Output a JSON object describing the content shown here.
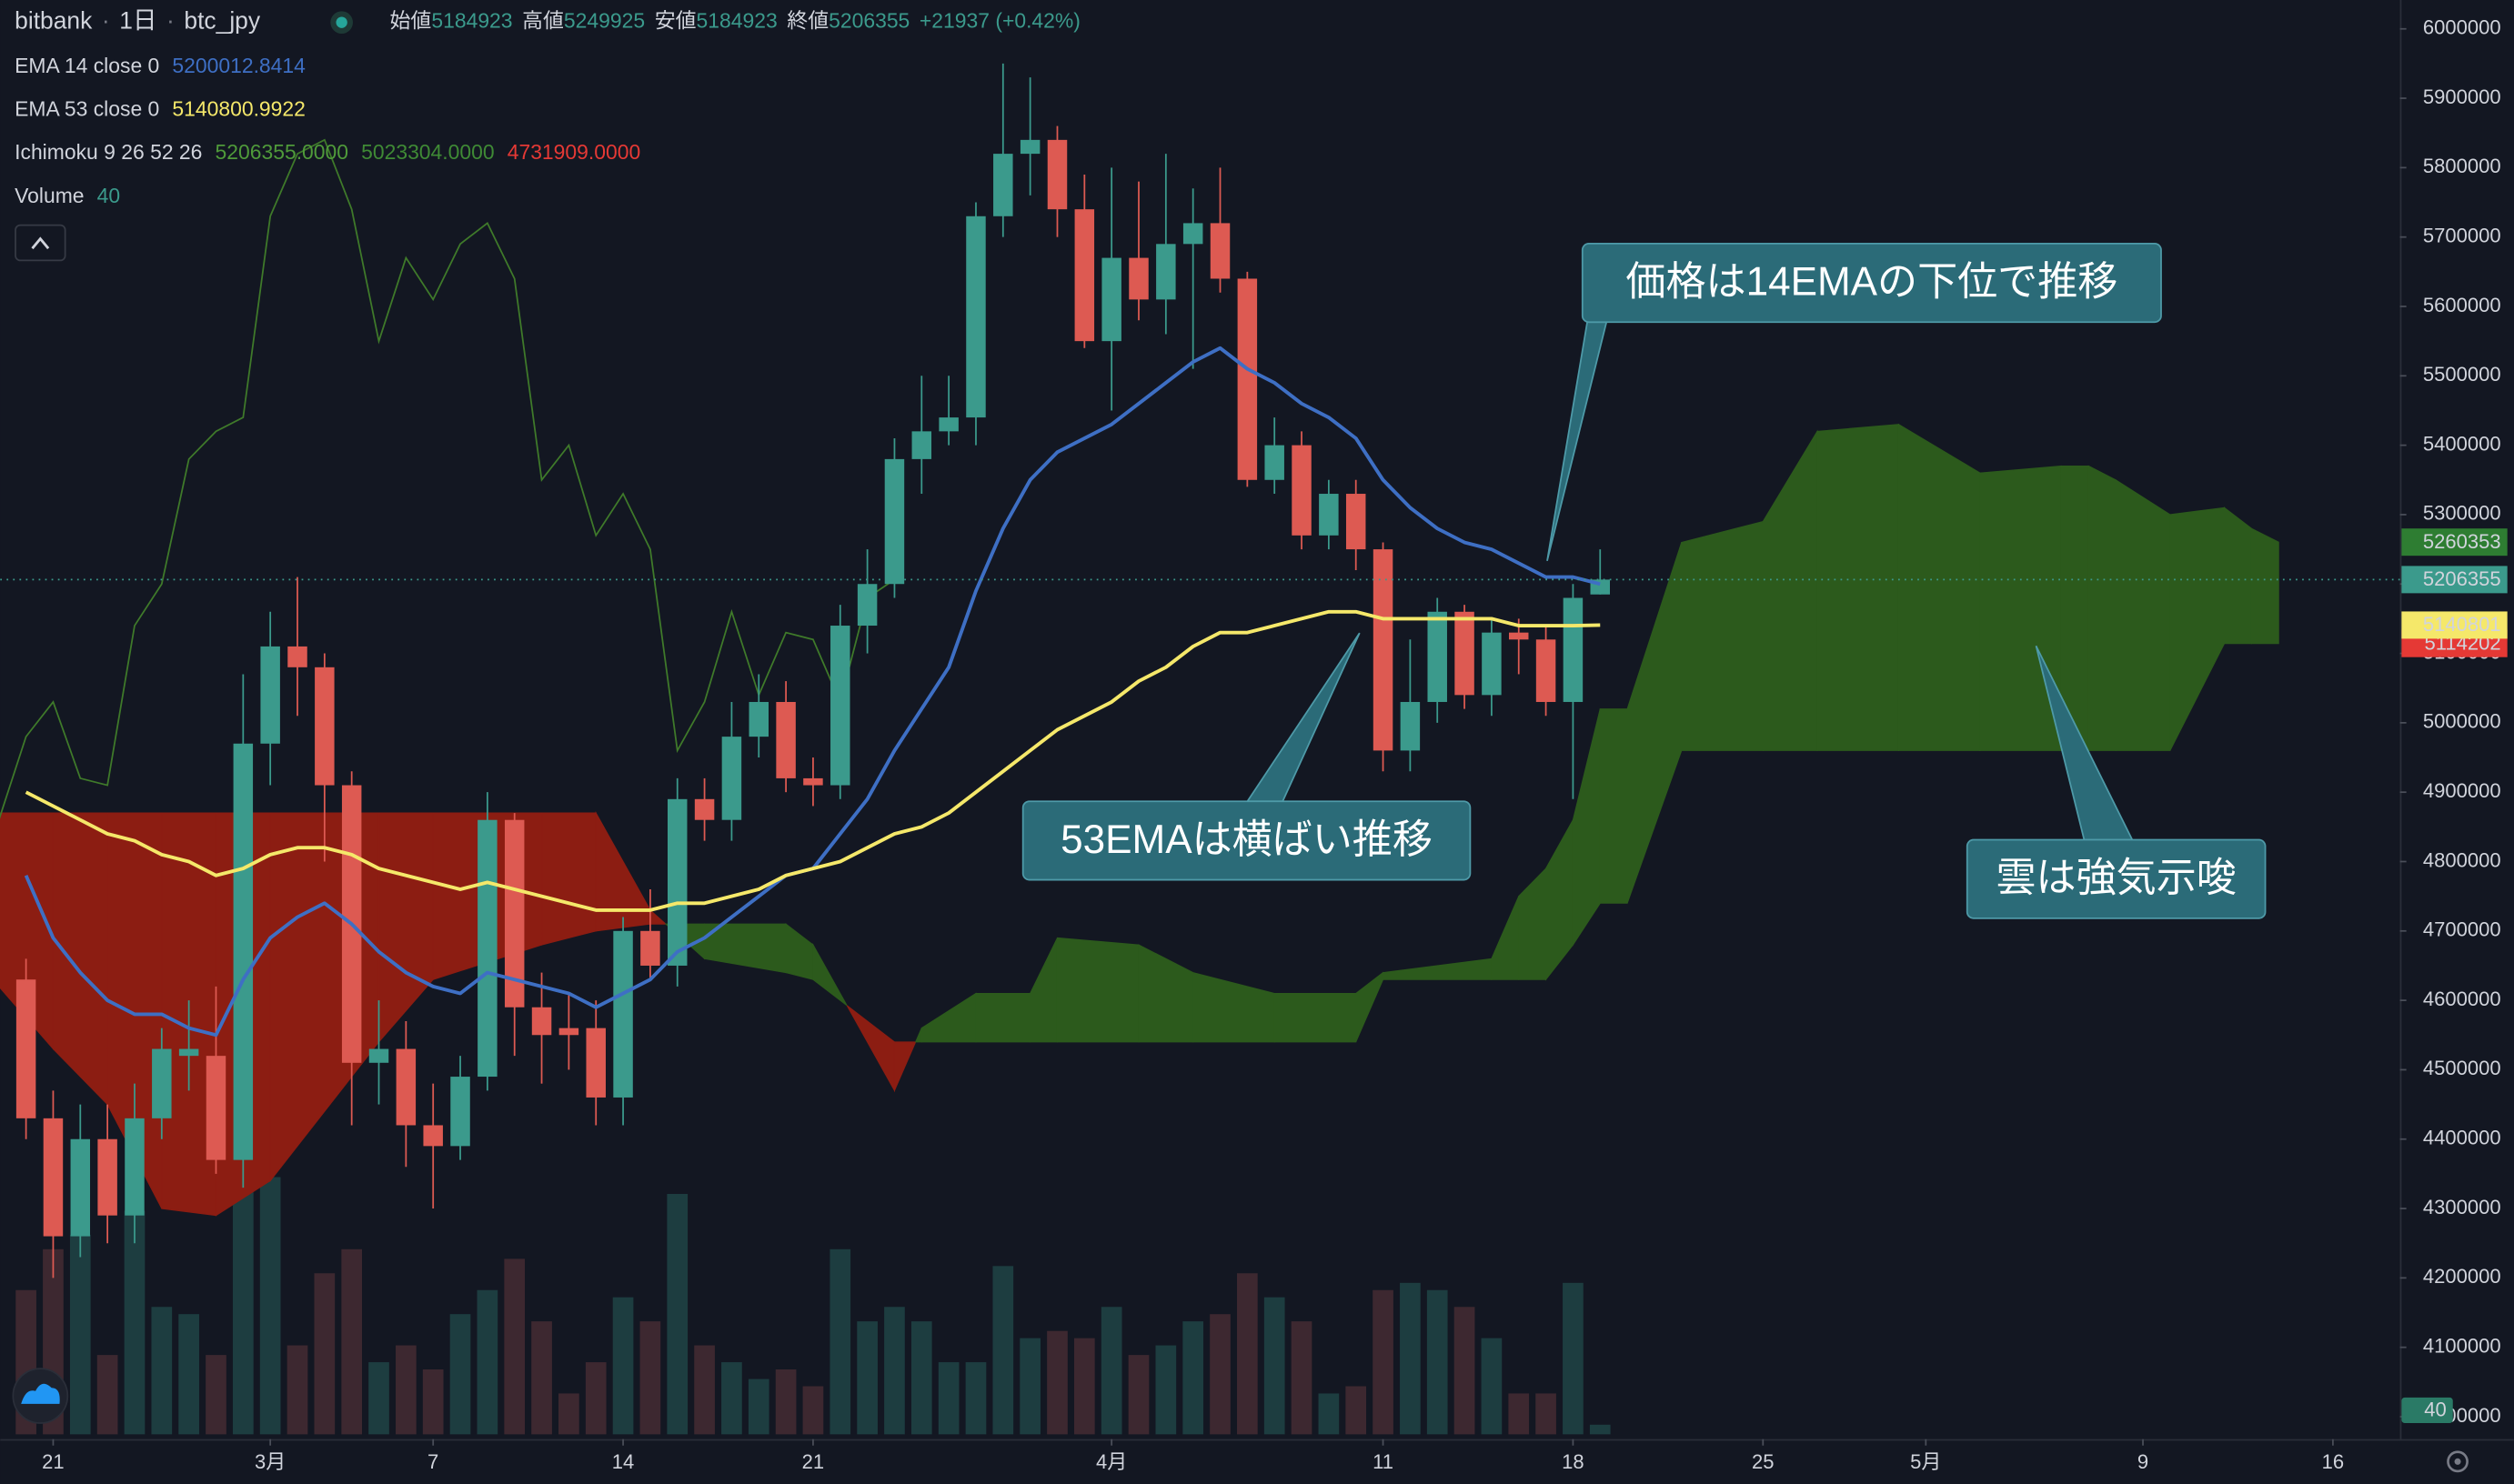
{
  "chart_data": {
    "type": "candlestick",
    "header": {
      "symbol": "bitbank",
      "interval": "1日",
      "pair": "btc_jpy",
      "labels": [
        "始値",
        "高値",
        "安値",
        "終値"
      ],
      "change": "+21937 (+0.42%)"
    },
    "x": [
      -1,
      0,
      1,
      2,
      3,
      4,
      5,
      6,
      7,
      8,
      9,
      10,
      11,
      12,
      13,
      14,
      15,
      16,
      17,
      18,
      19,
      20,
      21,
      22,
      23,
      24,
      25,
      26,
      27,
      28,
      29,
      30,
      31,
      32,
      33,
      34,
      35,
      36,
      37,
      38,
      39,
      40,
      41,
      42,
      43,
      44,
      45,
      46,
      47,
      48,
      49,
      50,
      51,
      52,
      53,
      54,
      55,
      56,
      57
    ],
    "open": [
      4630000,
      4430000,
      4260000,
      4400000,
      4290000,
      4430000,
      4520000,
      4520000,
      4370000,
      4970000,
      5110000,
      5080000,
      4910000,
      4510000,
      4530000,
      4420000,
      4390000,
      4490000,
      4860000,
      4590000,
      4560000,
      4560000,
      4460000,
      4700000,
      4650000,
      4890000,
      4860000,
      4980000,
      5030000,
      4920000,
      4910000,
      5140000,
      5200000,
      5380000,
      5420000,
      5440000,
      5730000,
      5820000,
      5840000,
      5740000,
      5550000,
      5670000,
      5610000,
      5690000,
      5720000,
      5640000,
      5350000,
      5400000,
      5270000,
      5330000,
      5250000,
      4960000,
      5030000,
      5160000,
      5040000,
      5130000,
      5120000,
      5030000,
      5184923
    ],
    "high": [
      4660000,
      4470000,
      4450000,
      4450000,
      4480000,
      4560000,
      4600000,
      4620000,
      5070000,
      5160000,
      5210000,
      5100000,
      4930000,
      4600000,
      4570000,
      4480000,
      4520000,
      4900000,
      4870000,
      4640000,
      4610000,
      4600000,
      4720000,
      4760000,
      4920000,
      4920000,
      5030000,
      5070000,
      5060000,
      4950000,
      5170000,
      5250000,
      5410000,
      5500000,
      5500000,
      5750000,
      5950000,
      5930000,
      5860000,
      5790000,
      5800000,
      5780000,
      5820000,
      5770000,
      5800000,
      5650000,
      5440000,
      5420000,
      5350000,
      5350000,
      5260000,
      5120000,
      5180000,
      5170000,
      5150000,
      5150000,
      5140000,
      5200000,
      5249925
    ],
    "low": [
      4400000,
      4200000,
      4230000,
      4250000,
      4250000,
      4400000,
      4470000,
      4350000,
      4330000,
      4910000,
      5010000,
      4800000,
      4420000,
      4450000,
      4360000,
      4300000,
      4370000,
      4470000,
      4520000,
      4480000,
      4500000,
      4420000,
      4420000,
      4630000,
      4620000,
      4830000,
      4830000,
      4950000,
      4900000,
      4880000,
      4890000,
      5100000,
      5180000,
      5330000,
      5400000,
      5400000,
      5700000,
      5760000,
      5700000,
      5540000,
      5450000,
      5580000,
      5560000,
      5510000,
      5620000,
      5340000,
      5330000,
      5250000,
      5250000,
      5220000,
      4930000,
      4930000,
      5000000,
      5020000,
      5010000,
      5070000,
      5010000,
      4890000,
      5184923
    ],
    "close": [
      4430000,
      4260000,
      4400000,
      4290000,
      4430000,
      4530000,
      4530000,
      4370000,
      4970000,
      5110000,
      5080000,
      4910000,
      4510000,
      4530000,
      4420000,
      4390000,
      4490000,
      4860000,
      4590000,
      4550000,
      4550000,
      4460000,
      4700000,
      4650000,
      4890000,
      4860000,
      4980000,
      5030000,
      4920000,
      4910000,
      5140000,
      5200000,
      5380000,
      5420000,
      5440000,
      5730000,
      5820000,
      5840000,
      5740000,
      5550000,
      5670000,
      5610000,
      5690000,
      5720000,
      5640000,
      5350000,
      5400000,
      5270000,
      5330000,
      5250000,
      4960000,
      5030000,
      5160000,
      5040000,
      5130000,
      5120000,
      5030000,
      5180000,
      5206355
    ],
    "up_color": "#3b9a8c",
    "down_color": "#dd5a52",
    "volume_name": "Volume",
    "volume": [
      600,
      770,
      830,
      330,
      930,
      530,
      500,
      330,
      1070,
      1070,
      370,
      670,
      770,
      300,
      370,
      270,
      500,
      600,
      730,
      470,
      170,
      300,
      570,
      470,
      1000,
      370,
      300,
      230,
      270,
      200,
      770,
      470,
      530,
      470,
      300,
      300,
      700,
      400,
      430,
      400,
      530,
      330,
      370,
      470,
      500,
      670,
      570,
      470,
      170,
      200,
      600,
      630,
      600,
      530,
      400,
      170,
      170,
      630,
      40
    ],
    "volume_lim": [
      0,
      1400
    ],
    "volume_colors": {
      "up": "#1d3d40",
      "down": "#3d2830",
      "badge": "#2a7a66"
    },
    "ema": [
      {
        "name": "EMA 14 close 0",
        "color": "#3e6fc4",
        "values": [
          4780000,
          4690000,
          4640000,
          4600000,
          4580000,
          4580000,
          4560000,
          4550000,
          4630000,
          4690000,
          4720000,
          4740000,
          4710000,
          4670000,
          4640000,
          4620000,
          4610000,
          4640000,
          4630000,
          4620000,
          4610000,
          4590000,
          4610000,
          4630000,
          4670000,
          4690000,
          4720000,
          4750000,
          4780000,
          4790000,
          4840000,
          4890000,
          4960000,
          5020000,
          5080000,
          5190000,
          5280000,
          5350000,
          5390000,
          5410000,
          5430000,
          5460000,
          5490000,
          5520000,
          5540000,
          5510000,
          5490000,
          5460000,
          5440000,
          5410000,
          5350000,
          5310000,
          5280000,
          5260000,
          5250000,
          5230000,
          5210000,
          5210000,
          5200012.8414
        ]
      },
      {
        "name": "EMA 53 close 0",
        "color": "#f5e86a",
        "values": [
          4900000,
          4880000,
          4860000,
          4840000,
          4830000,
          4810000,
          4800000,
          4780000,
          4790000,
          4810000,
          4820000,
          4820000,
          4810000,
          4790000,
          4780000,
          4770000,
          4760000,
          4770000,
          4760000,
          4750000,
          4740000,
          4730000,
          4730000,
          4730000,
          4740000,
          4740000,
          4750000,
          4760000,
          4780000,
          4790000,
          4800000,
          4820000,
          4840000,
          4850000,
          4870000,
          4900000,
          4930000,
          4960000,
          4990000,
          5010000,
          5030000,
          5060000,
          5080000,
          5110000,
          5130000,
          5130000,
          5140000,
          5150000,
          5160000,
          5160000,
          5150000,
          5150000,
          5150000,
          5150000,
          5150000,
          5140000,
          5140000,
          5140000,
          5140800.9922
        ]
      }
    ],
    "ichimoku": {
      "name": "Ichimoku 9 26 52 26",
      "value_texts": [
        "5206355.0000",
        "5023304.0000",
        "4731909.0000"
      ],
      "value_colors": [
        "#4f9a3a",
        "#3f8a35",
        "#e53935"
      ],
      "lagging_color": "#3f7a2a",
      "up_color": "#2c5a1c",
      "down_color": "#8c1d12",
      "lagging_x": [
        -2,
        -1,
        0,
        1,
        2,
        3,
        4,
        5,
        6,
        7,
        8,
        9,
        10,
        11,
        12,
        13,
        14,
        15,
        16,
        17,
        18,
        19,
        20,
        21,
        22,
        23,
        24,
        25,
        26,
        27,
        28,
        29,
        30,
        31
      ],
      "lagging": [
        4860000,
        4980000,
        5030000,
        4920000,
        4910000,
        5140000,
        5200000,
        5380000,
        5420000,
        5440000,
        5730000,
        5820000,
        5840000,
        5740000,
        5550000,
        5670000,
        5610000,
        5690000,
        5720000,
        5640000,
        5350000,
        5400000,
        5270000,
        5330000,
        5250000,
        4960000,
        5030000,
        5160000,
        5040000,
        5130000,
        5120000,
        5030000,
        5180000,
        5206355
      ],
      "x": [
        -2,
        0,
        2,
        4,
        6,
        8,
        12,
        14,
        18,
        20,
        22,
        24,
        27,
        28,
        31,
        32,
        34,
        36,
        37,
        40,
        42,
        45,
        48,
        49,
        53,
        54,
        55,
        56,
        57,
        58,
        60,
        63,
        65,
        68,
        71,
        74,
        75,
        76,
        78,
        80,
        81,
        82
      ],
      "span_a": [
        4620000,
        4530000,
        4450000,
        4300000,
        4290000,
        4340000,
        4540000,
        4630000,
        4680000,
        4700000,
        4710000,
        4710000,
        4710000,
        4680000,
        4470000,
        4560000,
        4610000,
        4610000,
        4690000,
        4680000,
        4640000,
        4610000,
        4610000,
        4640000,
        4660000,
        4750000,
        4790000,
        4860000,
        5020000,
        5020000,
        5260000,
        5290000,
        5420000,
        5430000,
        5360000,
        5370000,
        5370000,
        5350000,
        5300000,
        5310000,
        5280000,
        5260353
      ],
      "span_b": [
        4870000,
        4870000,
        4870000,
        4870000,
        4870000,
        4870000,
        4870000,
        4870000,
        4870000,
        4870000,
        4730000,
        4660000,
        4640000,
        4630000,
        4540000,
        4540000,
        4540000,
        4540000,
        4540000,
        4540000,
        4540000,
        4540000,
        4540000,
        4630000,
        4630000,
        4630000,
        4630000,
        4680000,
        4740000,
        4740000,
        4960000,
        4960000,
        4960000,
        4960000,
        4960000,
        4960000,
        4960000,
        4960000,
        4960000,
        5114202,
        5114202,
        5114202
      ]
    },
    "badges": [
      {
        "value": 5260353,
        "color": "#2e7d32",
        "text_color": "#ffffff"
      },
      {
        "value": 5206355,
        "color": "#3b9a8c",
        "text_color": "#ffffff"
      },
      {
        "value": 5114202,
        "color": "#e53935",
        "text_color": "#ffffff"
      },
      {
        "value": 5140800.9922,
        "label": "5140801",
        "color": "#f5e86a",
        "text_color": "#131722"
      }
    ],
    "annotations": [
      "価格は14EMAの下位で推移",
      "53EMAは横ばい推移",
      "雲は強気示唆"
    ],
    "xlim": [
      -1.95,
      86.47
    ],
    "xticks": [
      {
        "value": 0,
        "label": "21"
      },
      {
        "value": 8,
        "label": "3月"
      },
      {
        "value": 14,
        "label": "7"
      },
      {
        "value": 21,
        "label": "14"
      },
      {
        "value": 28,
        "label": "21"
      },
      {
        "value": 39,
        "label": "4月"
      },
      {
        "value": 49,
        "label": "11"
      },
      {
        "value": 56,
        "label": "18"
      },
      {
        "value": 63,
        "label": "25"
      },
      {
        "value": 69,
        "label": "5月"
      },
      {
        "value": 77,
        "label": "9"
      },
      {
        "value": 84,
        "label": "16"
      }
    ],
    "ylim": [
      3974600,
      6041600
    ],
    "yticks": [
      4000000,
      4100000,
      4200000,
      4300000,
      4400000,
      4500000,
      4600000,
      4700000,
      4800000,
      4900000,
      5000000,
      5100000,
      5200000,
      5300000,
      5400000,
      5500000,
      5600000,
      5700000,
      5800000,
      5900000,
      6000000
    ],
    "grid": false
  }
}
